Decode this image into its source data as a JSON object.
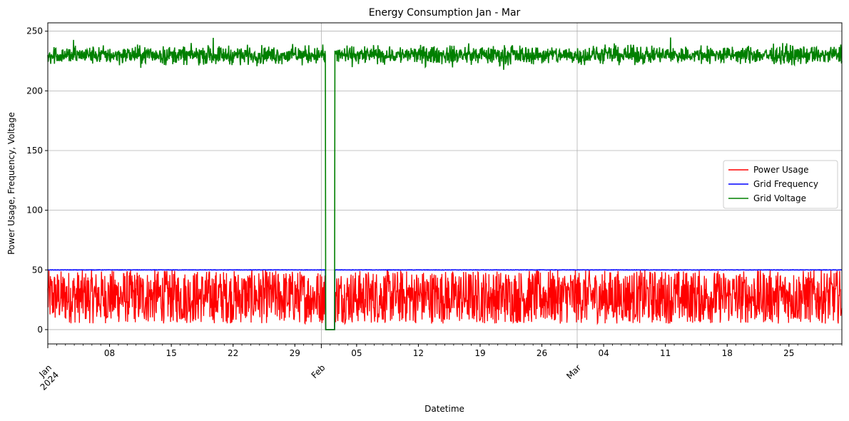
{
  "chart_data": {
    "type": "line",
    "title": "Energy Consumption Jan - Mar",
    "xlabel": "Datetime",
    "ylabel": "Power Usage, Frequency, Voltage",
    "x_range": [
      "2024-01-01",
      "2024-03-31"
    ],
    "ylim": [
      -12,
      257
    ],
    "y_ticks": [
      0,
      50,
      100,
      150,
      200,
      250
    ],
    "grid": true,
    "legend_position": "center-right",
    "x_tick_labels_minor": [
      {
        "date": "2024-01-08",
        "label": "08"
      },
      {
        "date": "2024-01-15",
        "label": "15"
      },
      {
        "date": "2024-01-22",
        "label": "22"
      },
      {
        "date": "2024-01-29",
        "label": "29"
      },
      {
        "date": "2024-02-05",
        "label": "05"
      },
      {
        "date": "2024-02-12",
        "label": "12"
      },
      {
        "date": "2024-02-19",
        "label": "19"
      },
      {
        "date": "2024-02-26",
        "label": "26"
      },
      {
        "date": "2024-03-04",
        "label": "04"
      },
      {
        "date": "2024-03-11",
        "label": "11"
      },
      {
        "date": "2024-03-18",
        "label": "18"
      },
      {
        "date": "2024-03-25",
        "label": "25"
      }
    ],
    "x_tick_labels_major": [
      {
        "date": "2024-01-01",
        "label": "Jan",
        "sublabel": "2024"
      },
      {
        "date": "2024-02-01",
        "label": "Feb",
        "sublabel": ""
      },
      {
        "date": "2024-03-01",
        "label": "Mar",
        "sublabel": ""
      }
    ],
    "outage": {
      "start": "2024-02-01 12:00",
      "end": "2024-02-02 12:00",
      "value": 0
    },
    "series": [
      {
        "name": "Power Usage",
        "color": "#ff0000",
        "baseline_range": [
          5,
          50
        ]
      },
      {
        "name": "Grid Frequency",
        "color": "#0000ff",
        "baseline_value": 50
      },
      {
        "name": "Grid Voltage",
        "color": "#008000",
        "baseline_mean": 230,
        "baseline_range": [
          212,
          245
        ]
      }
    ]
  }
}
